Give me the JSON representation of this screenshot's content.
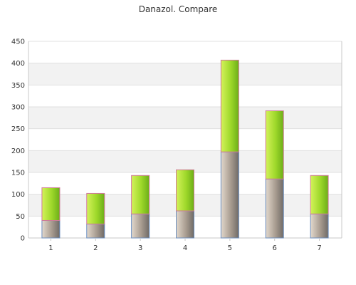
{
  "chart_data": {
    "type": "bar",
    "stacked": true,
    "title": "Danazol. Compare",
    "xlabel": "",
    "ylabel": "",
    "ylim": [
      0,
      450
    ],
    "yticks": [
      0,
      50,
      100,
      150,
      200,
      250,
      300,
      350,
      400,
      450
    ],
    "categories": [
      "1",
      "2",
      "3",
      "4",
      "5",
      "6",
      "7"
    ],
    "series": [
      {
        "values": [
          40,
          32,
          55,
          62,
          197,
          135,
          55
        ],
        "color": "#a89c90"
      },
      {
        "values": [
          75,
          70,
          88,
          94,
          210,
          156,
          88
        ],
        "color": "#9ed82a"
      }
    ],
    "grid": true,
    "banded_background": true
  },
  "colors": {
    "band": "#f2f2f2",
    "grid": "#e0e0e0",
    "axis": "#c8c8c8",
    "bar_outline": "#d07a9a",
    "bottom_outline": "#6a8ec0"
  }
}
